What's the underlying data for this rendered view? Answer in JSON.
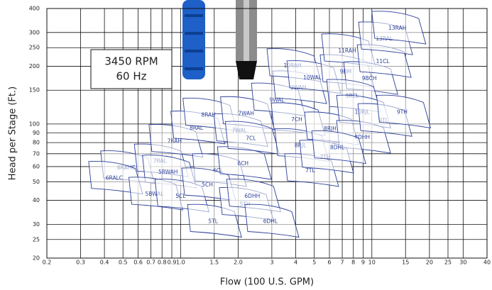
{
  "chart_data": {
    "type": "pump-curve",
    "xlabel": "Flow (100 U.S. GPM)",
    "ylabel": "Head per Stage (Ft.)",
    "annotation": [
      "3450 RPM",
      "60 Hz"
    ],
    "xscale": "log",
    "yscale": "log",
    "grid": true,
    "color": "#2b3f99",
    "xlim": [
      0.2,
      40
    ],
    "ylim": [
      20,
      400
    ],
    "xticks": [
      0.2,
      0.3,
      0.4,
      0.5,
      0.6,
      0.7,
      0.8,
      0.9,
      {
        "value": 1,
        "label": "1.0"
      },
      1.5,
      {
        "value": 2,
        "label": "2.0"
      },
      3,
      4,
      5,
      6,
      7,
      8,
      9,
      10,
      15,
      20,
      25,
      30,
      40
    ],
    "yticks": [
      20,
      25,
      30,
      40,
      50,
      60,
      70,
      80,
      90,
      100,
      150,
      200,
      250,
      300,
      400
    ],
    "regions": [
      {
        "name": "6RAHC",
        "flow": 0.52,
        "head": 59
      },
      {
        "name": "6RALC",
        "flow": 0.45,
        "head": 52
      },
      {
        "name": "7RAL",
        "flow": 0.78,
        "head": 64
      },
      {
        "name": "5RWAH",
        "flow": 0.86,
        "head": 56
      },
      {
        "name": "5BWAL",
        "flow": 0.73,
        "head": 43
      },
      {
        "name": "5CL",
        "flow": 1.0,
        "head": 42
      },
      {
        "name": "7RAH",
        "flow": 0.93,
        "head": 81
      },
      {
        "name": "8RAL",
        "flow": 1.21,
        "head": 95
      },
      {
        "name": "8RAH",
        "flow": 1.4,
        "head": 111
      },
      {
        "name": "6CL",
        "flow": 1.57,
        "head": 57
      },
      {
        "name": "5CH",
        "flow": 1.38,
        "head": 48
      },
      {
        "name": "5TL",
        "flow": 1.48,
        "head": 31
      },
      {
        "name": "5TH",
        "flow": 2.17,
        "head": 38
      },
      {
        "name": "6CH",
        "flow": 2.12,
        "head": 62
      },
      {
        "name": "7WAL",
        "flow": 2.03,
        "head": 92
      },
      {
        "name": "7WAH",
        "flow": 2.2,
        "head": 113
      },
      {
        "name": "7CL",
        "flow": 2.33,
        "head": 84
      },
      {
        "name": "6DHH",
        "flow": 2.37,
        "head": 42
      },
      {
        "name": "6DHL",
        "flow": 2.95,
        "head": 31
      },
      {
        "name": "9WAL",
        "flow": 3.19,
        "head": 133
      },
      {
        "name": "9WAH",
        "flow": 4.12,
        "head": 154
      },
      {
        "name": "10RAH",
        "flow": 3.85,
        "head": 201
      },
      {
        "name": "10WAL",
        "flow": 4.89,
        "head": 174
      },
      {
        "name": "7CH",
        "flow": 4.05,
        "head": 105
      },
      {
        "name": "8RJL",
        "flow": 4.23,
        "head": 77
      },
      {
        "name": "7TL",
        "flow": 4.76,
        "head": 57
      },
      {
        "name": "7TH",
        "flow": 5.7,
        "head": 67
      },
      {
        "name": "8RJH",
        "flow": 6.05,
        "head": 94
      },
      {
        "name": "9BM",
        "flow": 7.3,
        "head": 187
      },
      {
        "name": "11RAH",
        "flow": 7.43,
        "head": 240
      },
      {
        "name": "9BCH",
        "flow": 9.7,
        "head": 172
      },
      {
        "name": "9RCL",
        "flow": 7.9,
        "head": 139
      },
      {
        "name": "10RJL",
        "flow": 8.9,
        "head": 115
      },
      {
        "name": "8DHH",
        "flow": 8.9,
        "head": 85
      },
      {
        "name": "8DHL",
        "flow": 6.6,
        "head": 75
      },
      {
        "name": "9TL",
        "flow": 11.5,
        "head": 104
      },
      {
        "name": "9TH",
        "flow": 14.4,
        "head": 115
      },
      {
        "name": "11CL",
        "flow": 11.4,
        "head": 211
      },
      {
        "name": "13RAL",
        "flow": 11.6,
        "head": 277
      },
      {
        "name": "13RAH",
        "flow": 13.6,
        "head": 315
      }
    ]
  }
}
